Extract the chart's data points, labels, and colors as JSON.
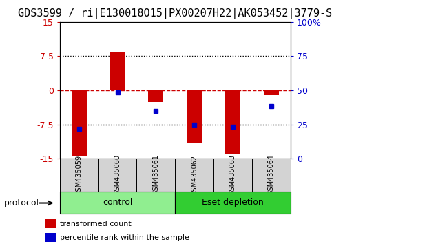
{
  "title": "GDS3599 / ri|E130018O15|PX00207H22|AK053452|3779-S",
  "categories": [
    "GSM435059",
    "GSM435060",
    "GSM435061",
    "GSM435062",
    "GSM435063",
    "GSM435064"
  ],
  "red_bar_values": [
    -14.5,
    8.5,
    -2.5,
    -11.5,
    -14.0,
    -1.0
  ],
  "blue_square_values": [
    -8.5,
    -0.5,
    -4.5,
    -7.5,
    -8.0,
    -3.5
  ],
  "ylim_left": [
    -15,
    15
  ],
  "ylim_right": [
    0,
    100
  ],
  "y_ticks_left": [
    -15,
    -7.5,
    0,
    7.5,
    15
  ],
  "y_ticks_right": [
    0,
    25,
    50,
    75,
    100
  ],
  "y_labels_left": [
    "-15",
    "-7.5",
    "0",
    "7.5",
    "15"
  ],
  "y_labels_right": [
    "0",
    "25",
    "50",
    "75",
    "100%"
  ],
  "hlines_dotted": [
    -7.5,
    7.5
  ],
  "hline_dashed": 0,
  "groups": [
    {
      "label": "control",
      "start": 0,
      "end": 2,
      "color": "#90EE90"
    },
    {
      "label": "Eset depletion",
      "start": 3,
      "end": 5,
      "color": "#32CD32"
    }
  ],
  "bar_color": "#CC0000",
  "blue_color": "#0000CC",
  "bg_color": "#FFFFFF",
  "protocol_label": "protocol",
  "legend_items": [
    {
      "color": "#CC0000",
      "label": "transformed count"
    },
    {
      "color": "#0000CC",
      "label": "percentile rank within the sample"
    }
  ],
  "title_fontsize": 11,
  "tick_fontsize": 9,
  "bar_width": 0.4
}
